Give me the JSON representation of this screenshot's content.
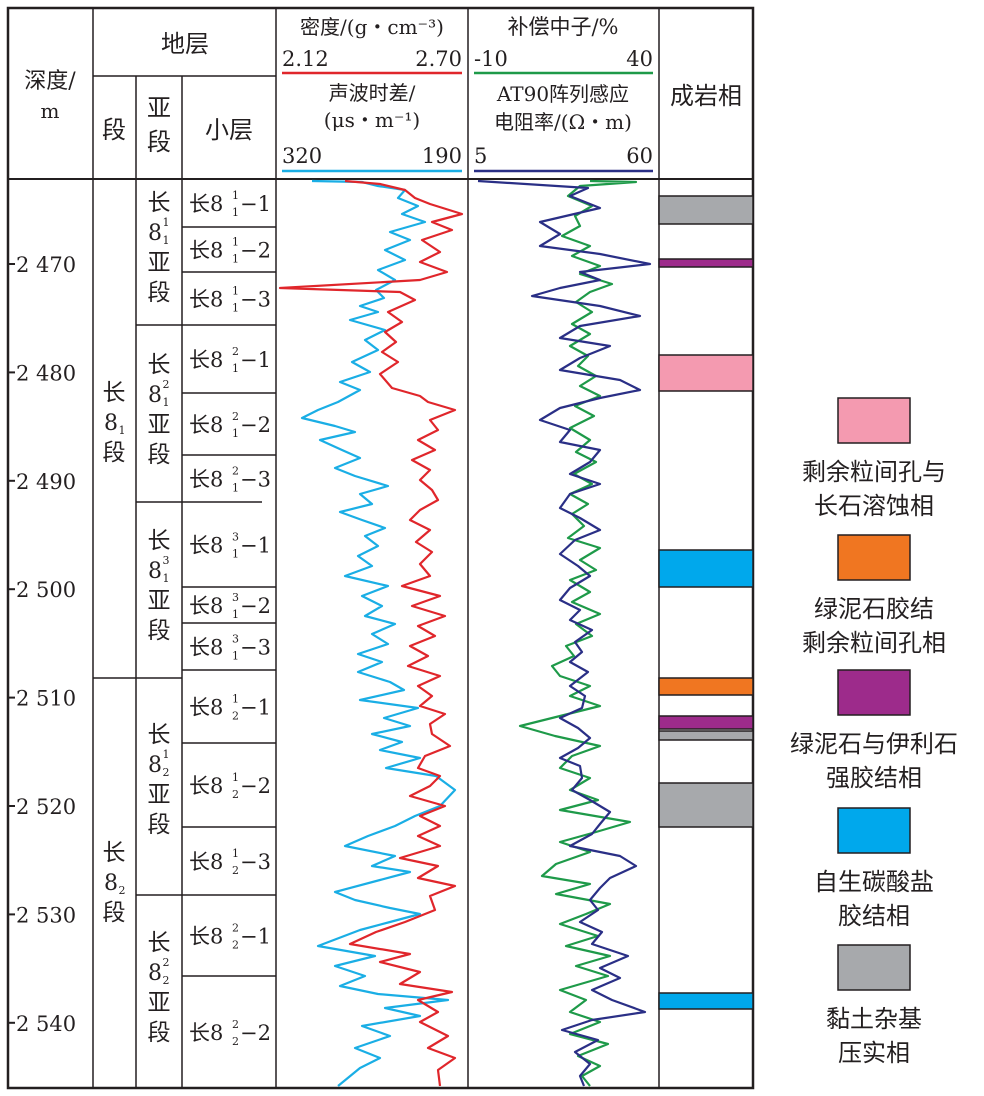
{
  "header": {
    "depth_title_1": "深度/",
    "depth_title_2": "m",
    "strata_title": "地层",
    "col_segment": "段",
    "col_subsegment_1": "亚",
    "col_subsegment_2": "段",
    "col_layer": "小层",
    "density_label": "密度/(g・cm⁻³)",
    "density_min": "2.12",
    "density_max": "2.70",
    "sonic_label_1": "声波时差/",
    "sonic_label_2": "(μs・m⁻¹)",
    "sonic_min": "320",
    "sonic_max": "190",
    "neutron_label": "补偿中子/%",
    "neutron_min": "-10",
    "neutron_max": "40",
    "resist_label_1": "AT90阵列感应",
    "resist_label_2": "电阻率/(Ω・m)",
    "resist_min": "5",
    "resist_max": "60",
    "facies_title": "成岩相"
  },
  "depth_ticks": [
    "2 470",
    "2 480",
    "2 490",
    "2 500",
    "2 510",
    "2 520",
    "2 530",
    "2 540"
  ],
  "segments": [
    {
      "main": "长",
      "num": "8",
      "sub": "1",
      "end": "段"
    },
    {
      "main": "长",
      "num": "8",
      "sub": "2",
      "end": "段"
    }
  ],
  "subsegments": [
    {
      "main": "长",
      "num": "8",
      "sup": "1",
      "sub": "1",
      "a": "亚",
      "b": "段"
    },
    {
      "main": "长",
      "num": "8",
      "sup": "2",
      "sub": "1",
      "a": "亚",
      "b": "段"
    },
    {
      "main": "长",
      "num": "8",
      "sup": "3",
      "sub": "1",
      "a": "亚",
      "b": "段"
    },
    {
      "main": "长",
      "num": "8",
      "sup": "1",
      "sub": "2",
      "a": "亚",
      "b": "段"
    },
    {
      "main": "长",
      "num": "8",
      "sup": "2",
      "sub": "2",
      "a": "亚",
      "b": "段"
    }
  ],
  "layers": [
    {
      "pre": "长8",
      "sup": "1",
      "sub": "1",
      "post": "−1"
    },
    {
      "pre": "长8",
      "sup": "1",
      "sub": "1",
      "post": "−2"
    },
    {
      "pre": "长8",
      "sup": "1",
      "sub": "1",
      "post": "−3"
    },
    {
      "pre": "长8",
      "sup": "2",
      "sub": "1",
      "post": "−1"
    },
    {
      "pre": "长8",
      "sup": "2",
      "sub": "1",
      "post": "−2"
    },
    {
      "pre": "长8",
      "sup": "2",
      "sub": "1",
      "post": "−3"
    },
    {
      "pre": "长8",
      "sup": "3",
      "sub": "1",
      "post": "−1"
    },
    {
      "pre": "长8",
      "sup": "3",
      "sub": "1",
      "post": "−2"
    },
    {
      "pre": "长8",
      "sup": "3",
      "sub": "1",
      "post": "−3"
    },
    {
      "pre": "长8",
      "sup": "1",
      "sub": "2",
      "post": "−1"
    },
    {
      "pre": "长8",
      "sup": "1",
      "sub": "2",
      "post": "−2"
    },
    {
      "pre": "长8",
      "sup": "1",
      "sub": "2",
      "post": "−3"
    },
    {
      "pre": "长8",
      "sup": "2",
      "sub": "2",
      "post": "−1"
    },
    {
      "pre": "长8",
      "sup": "2",
      "sub": "2",
      "post": "−2"
    }
  ],
  "colors": {
    "density": "#e0262b",
    "sonic": "#1aaee5",
    "neutron": "#1e9a49",
    "resistivity": "#2a2f86",
    "pink": "#f49ab0",
    "orange": "#f07621",
    "purple": "#9d2b8b",
    "blue": "#00a8ec",
    "gray": "#a7a9ac"
  },
  "legend": [
    {
      "key": "pink",
      "line1": "剩余粒间孔与",
      "line2": "长石溶蚀相"
    },
    {
      "key": "orange",
      "line1": "绿泥石胶结",
      "line2": "剩余粒间孔相"
    },
    {
      "key": "purple",
      "line1": "绿泥石与伊利石",
      "line2": "强胶结相"
    },
    {
      "key": "blue",
      "line1": "自生碳酸盐",
      "line2": "胶结相"
    },
    {
      "key": "gray",
      "line1": "黏土杂基",
      "line2": "压实相"
    }
  ]
}
